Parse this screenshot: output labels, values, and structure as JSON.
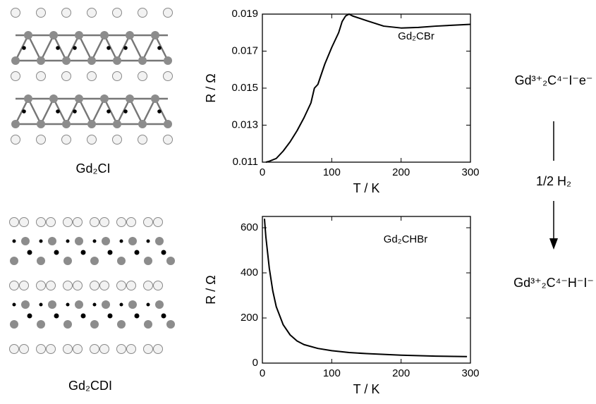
{
  "chart_data": [
    {
      "type": "line",
      "annotation": "Gd₂CBr",
      "xlabel": "T / K",
      "ylabel": "R / Ω",
      "color": "#000000",
      "x": [
        5,
        10,
        20,
        30,
        40,
        50,
        60,
        70,
        75,
        80,
        90,
        100,
        110,
        115,
        120,
        125,
        130,
        150,
        175,
        200,
        225,
        250,
        275,
        300
      ],
      "values": [
        0.011,
        0.01105,
        0.0112,
        0.0116,
        0.0121,
        0.0127,
        0.0134,
        0.0142,
        0.015,
        0.0152,
        0.0163,
        0.0172,
        0.018,
        0.0186,
        0.0189,
        0.019,
        0.0189,
        0.01865,
        0.01835,
        0.01825,
        0.01828,
        0.01835,
        0.0184,
        0.01845
      ],
      "xlim": [
        0,
        300
      ],
      "ylim": [
        0.011,
        0.019
      ],
      "xticks": [
        0,
        100,
        200,
        300
      ],
      "yticks": [
        0.011,
        0.013,
        0.015,
        0.017,
        0.019
      ]
    },
    {
      "type": "line",
      "annotation": "Gd₂CHBr",
      "xlabel": "T / K",
      "ylabel": "R / Ω",
      "color": "#000000",
      "x": [
        3,
        5,
        10,
        15,
        20,
        30,
        40,
        50,
        60,
        80,
        100,
        125,
        150,
        200,
        250,
        295
      ],
      "values": [
        640,
        560,
        420,
        320,
        250,
        170,
        125,
        98,
        82,
        65,
        55,
        47,
        42,
        35,
        31,
        29
      ],
      "xlim": [
        0,
        300
      ],
      "ylim": [
        0,
        650
      ],
      "xticks": [
        0,
        100,
        200,
        300
      ],
      "yticks": [
        0,
        200,
        400,
        600
      ]
    }
  ],
  "structures": [
    {
      "label": "Gd₂CI"
    },
    {
      "label": "Gd₂CDI"
    }
  ],
  "reaction": {
    "reactant": "Gd³⁺₂C⁴⁻I⁻e⁻",
    "reagent": "1/2 H₂",
    "product": "Gd³⁺₂C⁴⁻H⁻I⁻"
  }
}
